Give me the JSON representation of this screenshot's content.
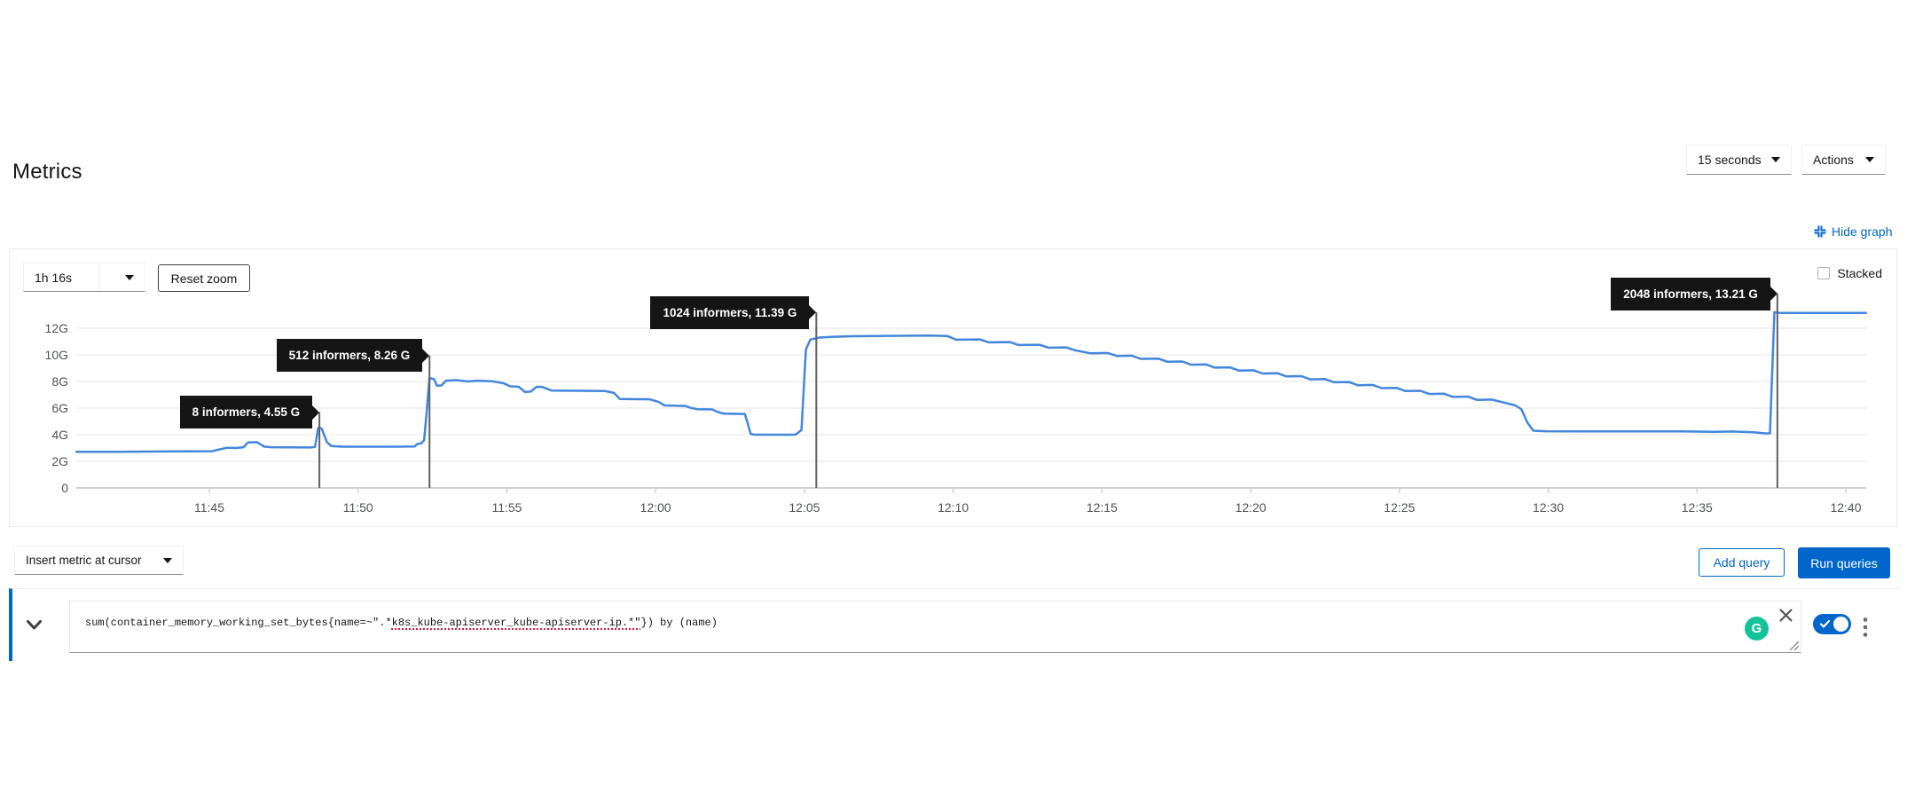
{
  "header": {
    "title": "Metrics",
    "interval_select_value": "15 seconds",
    "actions_menu_label": "Actions"
  },
  "graph_toolbar": {
    "hide_graph_label": "Hide graph",
    "timespan_value": "1h 16s",
    "reset_zoom_label": "Reset zoom",
    "stacked_label": "Stacked",
    "stacked_checked": false
  },
  "chart_data": {
    "type": "line",
    "title": "",
    "x_origin_time": "11:40",
    "x_unit": "minutes after 11:40",
    "x_ticks": [
      {
        "label": "11:45",
        "minute": 5
      },
      {
        "label": "11:50",
        "minute": 10
      },
      {
        "label": "11:55",
        "minute": 15
      },
      {
        "label": "12:00",
        "minute": 20
      },
      {
        "label": "12:05",
        "minute": 25
      },
      {
        "label": "12:10",
        "minute": 30
      },
      {
        "label": "12:15",
        "minute": 35
      },
      {
        "label": "12:20",
        "minute": 40
      },
      {
        "label": "12:25",
        "minute": 45
      },
      {
        "label": "12:30",
        "minute": 50
      },
      {
        "label": "12:35",
        "minute": 55
      },
      {
        "label": "12:40",
        "minute": 60
      }
    ],
    "y_ticks": [
      {
        "label": "0",
        "value": 0
      },
      {
        "label": "2G",
        "value": 2
      },
      {
        "label": "4G",
        "value": 4
      },
      {
        "label": "6G",
        "value": 6
      },
      {
        "label": "8G",
        "value": 8
      },
      {
        "label": "10G",
        "value": 10
      },
      {
        "label": "12G",
        "value": 12
      }
    ],
    "xlim_minutes": [
      0.5,
      60.7
    ],
    "ylim_g": [
      0,
      14.5
    ],
    "grid": true,
    "legend": "none",
    "series": [
      {
        "name": "sum(container_memory_working_set_bytes{name=~\".*k8s_kube-apiserver_kube-apiserver-ip.*\"}) by (name)",
        "color": "#4286de",
        "unit": "G",
        "points_minute_g": [
          [
            0.53,
            2.72
          ],
          [
            2,
            2.72
          ],
          [
            3.5,
            2.74
          ],
          [
            5.1,
            2.76
          ],
          [
            5.35,
            2.9
          ],
          [
            5.6,
            3.02
          ],
          [
            5.9,
            3.0
          ],
          [
            6.15,
            3.06
          ],
          [
            6.3,
            3.42
          ],
          [
            6.6,
            3.44
          ],
          [
            6.85,
            3.1
          ],
          [
            7.1,
            3.06
          ],
          [
            8.4,
            3.04
          ],
          [
            8.55,
            3.08
          ],
          [
            8.66,
            4.5
          ],
          [
            8.7,
            4.55
          ],
          [
            8.78,
            4.45
          ],
          [
            8.95,
            3.45
          ],
          [
            9.1,
            3.15
          ],
          [
            9.5,
            3.1
          ],
          [
            11.3,
            3.1
          ],
          [
            11.9,
            3.12
          ],
          [
            12.0,
            3.32
          ],
          [
            12.12,
            3.34
          ],
          [
            12.22,
            3.6
          ],
          [
            12.3,
            5.6
          ],
          [
            12.4,
            8.26
          ],
          [
            12.55,
            8.18
          ],
          [
            12.65,
            7.68
          ],
          [
            12.8,
            7.7
          ],
          [
            12.95,
            8.06
          ],
          [
            13.3,
            8.1
          ],
          [
            13.7,
            8.0
          ],
          [
            14.0,
            8.06
          ],
          [
            14.5,
            8.02
          ],
          [
            14.9,
            7.86
          ],
          [
            15.1,
            7.64
          ],
          [
            15.4,
            7.6
          ],
          [
            15.6,
            7.22
          ],
          [
            15.8,
            7.24
          ],
          [
            16.0,
            7.6
          ],
          [
            16.2,
            7.58
          ],
          [
            16.5,
            7.32
          ],
          [
            17.5,
            7.3
          ],
          [
            18.3,
            7.28
          ],
          [
            18.6,
            7.14
          ],
          [
            18.8,
            6.68
          ],
          [
            19.8,
            6.66
          ],
          [
            20.1,
            6.46
          ],
          [
            20.3,
            6.2
          ],
          [
            21.0,
            6.16
          ],
          [
            21.2,
            6.0
          ],
          [
            21.4,
            5.92
          ],
          [
            21.9,
            5.9
          ],
          [
            22.1,
            5.7
          ],
          [
            22.3,
            5.58
          ],
          [
            23.0,
            5.56
          ],
          [
            23.2,
            4.05
          ],
          [
            23.35,
            4.0
          ],
          [
            24.7,
            4.0
          ],
          [
            24.9,
            4.35
          ],
          [
            25.05,
            10.4
          ],
          [
            25.2,
            11.15
          ],
          [
            25.5,
            11.3
          ],
          [
            26.0,
            11.36
          ],
          [
            26.6,
            11.4
          ],
          [
            27.8,
            11.43
          ],
          [
            29.2,
            11.45
          ],
          [
            29.8,
            11.42
          ],
          [
            30.1,
            11.14
          ],
          [
            30.9,
            11.16
          ],
          [
            31.2,
            10.94
          ],
          [
            31.9,
            10.96
          ],
          [
            32.2,
            10.74
          ],
          [
            32.9,
            10.76
          ],
          [
            33.2,
            10.54
          ],
          [
            33.8,
            10.56
          ],
          [
            34.1,
            10.34
          ],
          [
            34.6,
            10.12
          ],
          [
            35.2,
            10.14
          ],
          [
            35.5,
            9.92
          ],
          [
            36.0,
            9.94
          ],
          [
            36.3,
            9.7
          ],
          [
            36.9,
            9.72
          ],
          [
            37.2,
            9.48
          ],
          [
            37.7,
            9.5
          ],
          [
            38.0,
            9.26
          ],
          [
            38.5,
            9.28
          ],
          [
            38.8,
            9.04
          ],
          [
            39.3,
            9.06
          ],
          [
            39.6,
            8.82
          ],
          [
            40.1,
            8.84
          ],
          [
            40.4,
            8.6
          ],
          [
            40.9,
            8.62
          ],
          [
            41.2,
            8.38
          ],
          [
            41.7,
            8.4
          ],
          [
            42.0,
            8.16
          ],
          [
            42.5,
            8.18
          ],
          [
            42.8,
            7.94
          ],
          [
            43.3,
            7.96
          ],
          [
            43.6,
            7.72
          ],
          [
            44.1,
            7.74
          ],
          [
            44.4,
            7.5
          ],
          [
            44.9,
            7.52
          ],
          [
            45.2,
            7.28
          ],
          [
            45.7,
            7.3
          ],
          [
            46.0,
            7.06
          ],
          [
            46.5,
            7.08
          ],
          [
            46.8,
            6.84
          ],
          [
            47.3,
            6.86
          ],
          [
            47.6,
            6.62
          ],
          [
            48.1,
            6.64
          ],
          [
            48.5,
            6.42
          ],
          [
            48.9,
            6.2
          ],
          [
            49.1,
            5.9
          ],
          [
            49.3,
            4.9
          ],
          [
            49.5,
            4.3
          ],
          [
            49.9,
            4.26
          ],
          [
            52.0,
            4.25
          ],
          [
            54.5,
            4.25
          ],
          [
            55.6,
            4.22
          ],
          [
            56.2,
            4.24
          ],
          [
            56.9,
            4.18
          ],
          [
            57.3,
            4.1
          ],
          [
            57.45,
            4.1
          ],
          [
            57.6,
            13.21
          ],
          [
            57.8,
            13.15
          ],
          [
            60.68,
            13.15
          ]
        ]
      }
    ],
    "annotations": [
      {
        "label": "8 informers, 4.55 G",
        "minute": 8.7,
        "value_g": 4.55,
        "callout_tip_g": 5.7
      },
      {
        "label": "512 informers, 8.26 G",
        "minute": 12.4,
        "value_g": 8.26,
        "callout_tip_g": 9.95
      },
      {
        "label": "1024 informers, 11.39 G",
        "minute": 25.4,
        "value_g": 11.39,
        "callout_tip_g": 13.2
      },
      {
        "label": "2048 informers, 13.21 G",
        "minute": 57.7,
        "value_g": 13.21,
        "callout_tip_g": 14.6
      }
    ]
  },
  "query_toolbar": {
    "insert_metric_label": "Insert metric at cursor",
    "add_query_label": "Add query",
    "run_queries_label": "Run queries"
  },
  "query": {
    "expression_prefix": "sum(container_memory_working_set_bytes{name=~\".*",
    "expression_flagged": "k8s_kube-apiserver_kube-apiserver-ip.*\"",
    "expression_suffix": "}) by (name)",
    "expression_full": "sum(container_memory_working_set_bytes{name=~\".*k8s_kube-apiserver_kube-apiserver-ip.*\"}) by (name)",
    "grammarly_letter": "G",
    "toggle_checked": true
  },
  "colors": {
    "primary_blue": "#0066cc",
    "chart_line": "#4286de",
    "annotation_bg": "#151515",
    "marker_line": "#5d6165",
    "grid_line": "#ededed",
    "axis_line": "#d2d2d2",
    "axis_label": "#4f5255",
    "grammarly_green": "#15c39a",
    "spellcheck_red": "#e0193c"
  }
}
